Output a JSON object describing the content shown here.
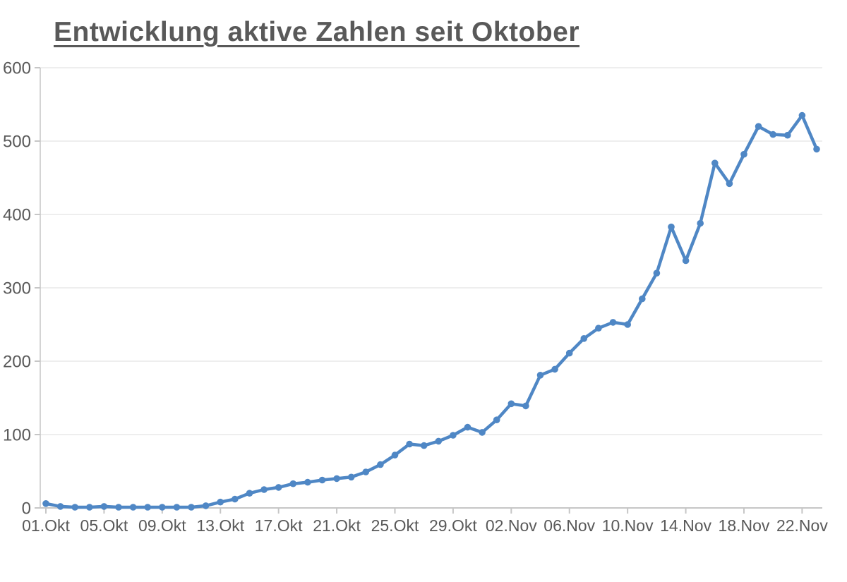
{
  "page": {
    "background_color": "#ffffff"
  },
  "title": {
    "text": "Entwicklung aktive Zahlen seit Oktober",
    "color": "#595959"
  },
  "chart_data": {
    "type": "line",
    "title": "Entwicklung aktive Zahlen seit Oktober",
    "xlabel": "",
    "ylabel": "",
    "grid": true,
    "legend": "none",
    "ylim": [
      0,
      600
    ],
    "yticks": [
      0,
      100,
      200,
      300,
      400,
      500,
      600
    ],
    "xtick_every": 4,
    "categories": [
      "01.Okt",
      "02.Okt",
      "03.Okt",
      "04.Okt",
      "05.Okt",
      "06.Okt",
      "07.Okt",
      "08.Okt",
      "09.Okt",
      "10.Okt",
      "11.Okt",
      "12.Okt",
      "13.Okt",
      "14.Okt",
      "15.Okt",
      "16.Okt",
      "17.Okt",
      "18.Okt",
      "19.Okt",
      "20.Okt",
      "21.Okt",
      "22.Okt",
      "23.Okt",
      "24.Okt",
      "25.Okt",
      "26.Okt",
      "27.Okt",
      "28.Okt",
      "29.Okt",
      "30.Okt",
      "31.Okt",
      "01.Nov",
      "02.Nov",
      "03.Nov",
      "04.Nov",
      "05.Nov",
      "06.Nov",
      "07.Nov",
      "08.Nov",
      "09.Nov",
      "10.Nov",
      "11.Nov",
      "12.Nov",
      "13.Nov",
      "14.Nov",
      "15.Nov",
      "16.Nov",
      "17.Nov",
      "18.Nov",
      "19.Nov",
      "20.Nov",
      "21.Nov",
      "22.Nov",
      "23.Nov"
    ],
    "values": [
      6,
      2,
      1,
      1,
      2,
      1,
      1,
      1,
      1,
      1,
      1,
      3,
      8,
      12,
      20,
      25,
      28,
      33,
      35,
      38,
      40,
      42,
      49,
      59,
      72,
      87,
      85,
      91,
      99,
      110,
      103,
      120,
      142,
      139,
      181,
      189,
      211,
      231,
      245,
      253,
      250,
      285,
      320,
      383,
      337,
      388,
      470,
      442,
      482,
      520,
      509,
      508,
      535,
      489
    ],
    "colors": {
      "series": "#4f87c5",
      "grid": "#e8e8e8",
      "axis": "#c6c6c6",
      "labels": "#595959"
    }
  }
}
